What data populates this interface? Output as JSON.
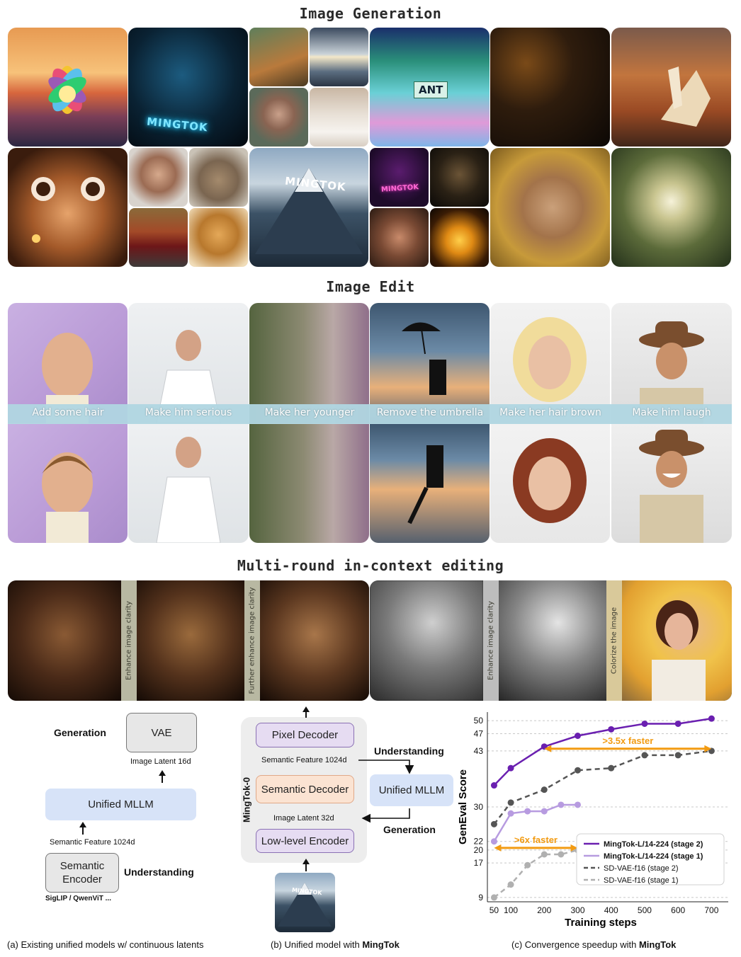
{
  "sections": {
    "generation_title": "Image Generation",
    "edit_title": "Image Edit",
    "multiround_title": "Multi-round in-context editing"
  },
  "generation": {
    "texts": {
      "mingtok_glow": "MINGTOK",
      "ant_sign": "ANT",
      "mountain_text": "MINGTOK",
      "neon_text": "MINGTOK"
    }
  },
  "edit": {
    "captions": [
      "Add some hair",
      "Make him serious",
      "Make her younger",
      "Remove the umbrella",
      "Make her hair brown",
      "Make him laugh"
    ]
  },
  "multiround": {
    "strips": [
      "Enhance image clarity",
      "Further enhance image clarity",
      "Enhance image clarity",
      "Colorize the image"
    ]
  },
  "diagram_a": {
    "generation_label": "Generation",
    "vae": "VAE",
    "image_latent": "Image Latent 16d",
    "mllm": "Unified MLLM",
    "semantic_feature": "Semantic Feature 1024d",
    "encoder": "Semantic Encoder",
    "understanding_label": "Understanding",
    "encoder_note": "SigLIP / QwenViT ...",
    "caption_prefix": "(a) Existing unified models w/ continuous latents"
  },
  "diagram_b": {
    "side_label": "MingTok-0",
    "pixel_decoder": "Pixel Decoder",
    "semantic_feature": "Semantic Feature 1024d",
    "semantic_decoder": "Semantic Decoder",
    "image_latent": "Image Latent 32d",
    "low_encoder": "Low-level Encoder",
    "understanding_label": "Understanding",
    "mllm": "Unified MLLM",
    "generation_label": "Generation",
    "input_text": "MINGTOK",
    "caption_prefix": "(b) Unified model with ",
    "caption_bold": "MingTok"
  },
  "chart_caption": {
    "prefix": "(c) Convergence speedup with ",
    "bold": "MingTok"
  },
  "chart_data": {
    "type": "line",
    "xlabel": "Training steps",
    "ylabel": "GenEval Score",
    "xticks": [
      50,
      100,
      200,
      300,
      400,
      500,
      600,
      700
    ],
    "yticks": [
      9,
      17,
      20,
      22,
      30,
      43,
      47,
      50
    ],
    "xlim": [
      30,
      750
    ],
    "ylim": [
      8,
      52
    ],
    "grid": "horizontal dashed",
    "legend_position": "bottom-right",
    "series": [
      {
        "name": "MingTok-L/14-224 (stage 2)",
        "color": "#6a1fb0",
        "style": "solid",
        "x": [
          50,
          100,
          200,
          300,
          400,
          500,
          600,
          700
        ],
        "y": [
          35,
          39,
          44,
          46.5,
          48,
          49.3,
          49.3,
          50.5
        ]
      },
      {
        "name": "MingTok-L/14-224 (stage 1)",
        "color": "#b79be0",
        "style": "solid",
        "x": [
          50,
          100,
          150,
          200,
          250,
          300
        ],
        "y": [
          22,
          28.5,
          29,
          29,
          30.5,
          30.5
        ]
      },
      {
        "name": "SD-VAE-f16 (stage 2)",
        "color": "#555555",
        "style": "dashed",
        "x": [
          50,
          100,
          200,
          300,
          400,
          500,
          600,
          700
        ],
        "y": [
          26,
          31,
          34,
          38.5,
          39,
          42,
          42,
          43
        ]
      },
      {
        "name": "SD-VAE-f16 (stage 1)",
        "color": "#b0b0b0",
        "style": "dashed",
        "x": [
          50,
          100,
          150,
          200,
          250,
          300
        ],
        "y": [
          9,
          12,
          16.5,
          19,
          19,
          20
        ]
      }
    ],
    "annotations": [
      {
        "text": ">3.5x faster",
        "x_from": 200,
        "x_to": 700,
        "y": 43.5,
        "color": "#f29b12"
      },
      {
        "text": ">6x faster",
        "x_from": 50,
        "x_to": 300,
        "y": 20.5,
        "color": "#f29b12"
      }
    ]
  }
}
